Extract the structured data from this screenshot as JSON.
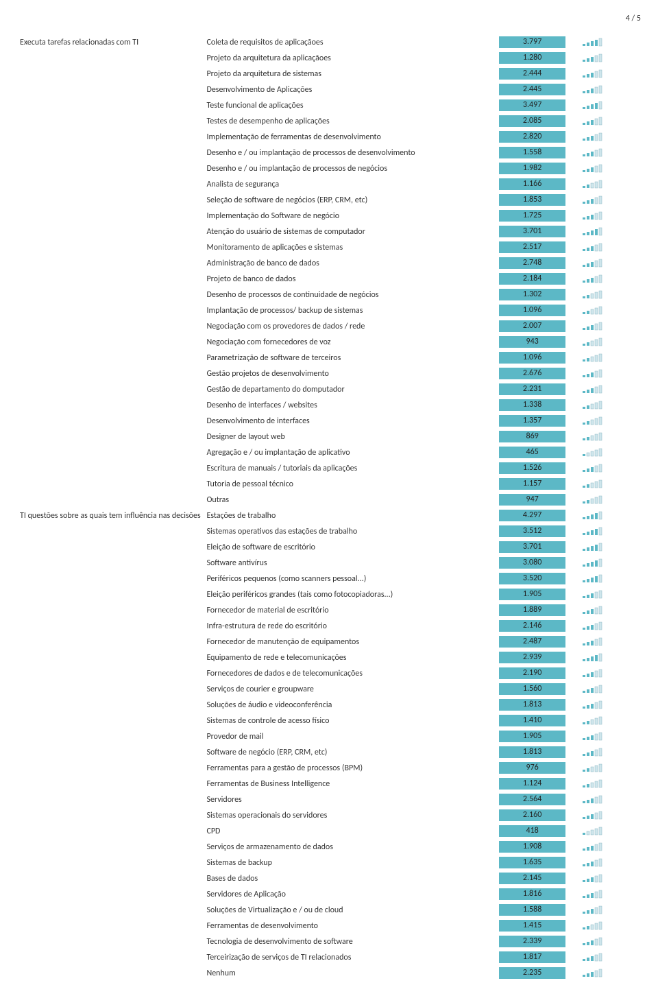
{
  "page_indicator": "4 / 5",
  "value_bg_color": "#5cb8c6",
  "bar_outline_color": "#cfe6ec",
  "bar_fill_color": "#5cb8c6",
  "sections": [
    {
      "category": "Executa tarefas relacionadas com TI",
      "rows": [
        {
          "label": "Coleta de requisitos de aplicaçãoes",
          "value": "3.797",
          "bars": 4
        },
        {
          "label": "Projeto da arquitetura da aplicaçãoes",
          "value": "1.280",
          "bars": 3
        },
        {
          "label": "Projeto da arquitetura de sistemas",
          "value": "2.444",
          "bars": 3
        },
        {
          "label": "Desenvolvimento de Aplicações",
          "value": "2.445",
          "bars": 3
        },
        {
          "label": "Teste funcional de aplicações",
          "value": "3.497",
          "bars": 4
        },
        {
          "label": "Testes de desempenho de aplicações",
          "value": "2.085",
          "bars": 3
        },
        {
          "label": "Implementação de ferramentas de desenvolvimento",
          "value": "2.820",
          "bars": 3
        },
        {
          "label": "Desenho e / ou implantação de processos de desenvolvimento",
          "value": "1.558",
          "bars": 3
        },
        {
          "label": "Desenho e / ou implantação de processos de negócios",
          "value": "1.982",
          "bars": 3
        },
        {
          "label": "Analista de segurança",
          "value": "1.166",
          "bars": 2
        },
        {
          "label": "Seleção de software de negócios (ERP, CRM, etc)",
          "value": "1.853",
          "bars": 3
        },
        {
          "label": "Implementação do Software de negócio",
          "value": "1.725",
          "bars": 3
        },
        {
          "label": "Atenção do usuário de sistemas de computador",
          "value": "3.701",
          "bars": 4
        },
        {
          "label": "Monitoramento de aplicações e sistemas",
          "value": "2.517",
          "bars": 3
        },
        {
          "label": "Administração de banco de dados",
          "value": "2.748",
          "bars": 3
        },
        {
          "label": "Projeto de banco de dados",
          "value": "2.184",
          "bars": 3
        },
        {
          "label": "Desenho de processos de continuidade de negócios",
          "value": "1.302",
          "bars": 2
        },
        {
          "label": "Implantação de processos/ backup de sistemas",
          "value": "1.096",
          "bars": 2
        },
        {
          "label": "Negociação com os provedores de dados / rede",
          "value": "2.007",
          "bars": 3
        },
        {
          "label": "Negociação com fornecedores de voz",
          "value": "943",
          "bars": 2
        },
        {
          "label": "Parametrização de software de terceiros",
          "value": "1.096",
          "bars": 2
        },
        {
          "label": "Gestão projetos de desenvolvimento",
          "value": "2.676",
          "bars": 3
        },
        {
          "label": "Gestão de departamento do domputador",
          "value": "2.231",
          "bars": 3
        },
        {
          "label": "Desenho de interfaces / websites",
          "value": "1.338",
          "bars": 2
        },
        {
          "label": "Desenvolvimento de interfaces",
          "value": "1.357",
          "bars": 2
        },
        {
          "label": "Designer de layout web",
          "value": "869",
          "bars": 2
        },
        {
          "label": "Agregação e / ou implantação de aplicativo",
          "value": "465",
          "bars": 1
        },
        {
          "label": "Escritura de manuais / tutoriais da aplicações",
          "value": "1.526",
          "bars": 3
        },
        {
          "label": "Tutoria de pessoal técnico",
          "value": "1.157",
          "bars": 2
        },
        {
          "label": "Outras",
          "value": "947",
          "bars": 2
        }
      ]
    },
    {
      "category": "TI questões sobre as quais tem influência nas decisões",
      "rows": [
        {
          "label": "Estações de trabalho",
          "value": "4.297",
          "bars": 4
        },
        {
          "label": "Sistemas operativos das estações de trabalho",
          "value": "3.512",
          "bars": 4
        },
        {
          "label": "Eleição de software de escritório",
          "value": "3.701",
          "bars": 4
        },
        {
          "label": "Software antivírus",
          "value": "3.080",
          "bars": 4
        },
        {
          "label": "Periféricos pequenos (como scanners pessoal...)",
          "value": "3.520",
          "bars": 4
        },
        {
          "label": "Eleição periféricos grandes (tais como fotocopiadoras...)",
          "value": "1.905",
          "bars": 3
        },
        {
          "label": "Fornecedor de material de escritório",
          "value": "1.889",
          "bars": 3
        },
        {
          "label": "Infra-estrutura de rede do escritório",
          "value": "2.146",
          "bars": 3
        },
        {
          "label": "Fornecedor de manutenção de equipamentos",
          "value": "2.487",
          "bars": 3
        },
        {
          "label": "Equipamento de rede e telecomunicações",
          "value": "2.939",
          "bars": 4
        },
        {
          "label": "Fornecedores de dados e de telecomunicações",
          "value": "2.190",
          "bars": 3
        },
        {
          "label": "Serviços de courier e groupware",
          "value": "1.560",
          "bars": 3
        },
        {
          "label": "Soluções de áudio e videoconferência",
          "value": "1.813",
          "bars": 3
        },
        {
          "label": "Sistemas de controle de acesso físico",
          "value": "1.410",
          "bars": 2
        },
        {
          "label": "Provedor de mail",
          "value": "1.905",
          "bars": 3
        },
        {
          "label": "Software de negócio (ERP, CRM, etc)",
          "value": "1.813",
          "bars": 3
        },
        {
          "label": "Ferramentas para a gestão de processos (BPM)",
          "value": "976",
          "bars": 2
        },
        {
          "label": "Ferramentas de Business Intelligence",
          "value": "1.124",
          "bars": 2
        },
        {
          "label": "Servidores",
          "value": "2.564",
          "bars": 3
        },
        {
          "label": "Sistemas operacionais do servidores",
          "value": "2.160",
          "bars": 3
        },
        {
          "label": "CPD",
          "value": "418",
          "bars": 1
        },
        {
          "label": "Serviços de armazenamento de dados",
          "value": "1.908",
          "bars": 3
        },
        {
          "label": "Sistemas de backup",
          "value": "1.635",
          "bars": 3
        },
        {
          "label": "Bases de dados",
          "value": "2.145",
          "bars": 3
        },
        {
          "label": "Servidores de Aplicação",
          "value": "1.816",
          "bars": 3
        },
        {
          "label": "Soluções de Virtualização e / ou de cloud",
          "value": "1.588",
          "bars": 3
        },
        {
          "label": "Ferramentas de desenvolvimento",
          "value": "1.415",
          "bars": 2
        },
        {
          "label": "Tecnologia de desenvolvimento de software",
          "value": "2.339",
          "bars": 3
        },
        {
          "label": "Terceirização de serviços de TI relacionados",
          "value": "1.817",
          "bars": 3
        },
        {
          "label": "Nenhum",
          "value": "2.235",
          "bars": 3
        }
      ]
    }
  ]
}
